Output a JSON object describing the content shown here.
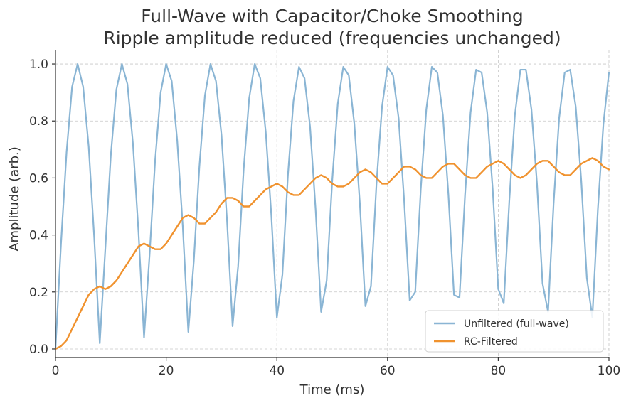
{
  "chart_data": {
    "type": "line",
    "title": "Full-Wave with Capacitor/Choke Smoothing",
    "subtitle": "Ripple amplitude reduced (frequencies unchanged)",
    "xlabel": "Time (ms)",
    "ylabel": "Amplitude (arb.)",
    "xlim": [
      0,
      100
    ],
    "ylim": [
      -0.03,
      1.05
    ],
    "xticks": [
      0,
      20,
      40,
      60,
      80,
      100
    ],
    "yticks": [
      0.0,
      0.2,
      0.4,
      0.6,
      0.8,
      1.0
    ],
    "xtick_labels": [
      "0",
      "20",
      "40",
      "60",
      "80",
      "100"
    ],
    "ytick_labels": [
      "0.0",
      "0.2",
      "0.4",
      "0.6",
      "0.8",
      "1.0"
    ],
    "grid": true,
    "legend_position": "bottom-right",
    "series": [
      {
        "name": "Unfiltered (full-wave)",
        "color": "#8ab5d4",
        "x": [
          0,
          1,
          2,
          3,
          4,
          5,
          6,
          7,
          8,
          9,
          10,
          11,
          12,
          13,
          14,
          15,
          16,
          17,
          18,
          19,
          20,
          21,
          22,
          23,
          24,
          25,
          26,
          27,
          28,
          29,
          30,
          31,
          32,
          33,
          34,
          35,
          36,
          37,
          38,
          39,
          40,
          41,
          42,
          43,
          44,
          45,
          46,
          47,
          48,
          49,
          50,
          51,
          52,
          53,
          54,
          55,
          56,
          57,
          58,
          59,
          60,
          61,
          62,
          63,
          64,
          65,
          66,
          67,
          68,
          69,
          70,
          71,
          72,
          73,
          74,
          75,
          76,
          77,
          78,
          79,
          80,
          81,
          82,
          83,
          84,
          85,
          86,
          87,
          88,
          89,
          90,
          91,
          92,
          93,
          94,
          95,
          96,
          97,
          98,
          99,
          100
        ],
        "y": [
          0.0,
          0.37,
          0.69,
          0.92,
          1.0,
          0.92,
          0.71,
          0.39,
          0.02,
          0.35,
          0.68,
          0.91,
          1.0,
          0.93,
          0.72,
          0.41,
          0.04,
          0.33,
          0.66,
          0.9,
          1.0,
          0.94,
          0.73,
          0.43,
          0.06,
          0.31,
          0.64,
          0.89,
          1.0,
          0.94,
          0.75,
          0.45,
          0.08,
          0.29,
          0.63,
          0.88,
          1.0,
          0.95,
          0.76,
          0.47,
          0.11,
          0.26,
          0.61,
          0.87,
          0.99,
          0.95,
          0.78,
          0.49,
          0.13,
          0.24,
          0.59,
          0.86,
          0.99,
          0.96,
          0.79,
          0.51,
          0.15,
          0.22,
          0.58,
          0.85,
          0.99,
          0.96,
          0.81,
          0.52,
          0.17,
          0.2,
          0.56,
          0.84,
          0.99,
          0.97,
          0.82,
          0.54,
          0.19,
          0.18,
          0.54,
          0.83,
          0.98,
          0.97,
          0.83,
          0.56,
          0.21,
          0.16,
          0.52,
          0.82,
          0.98,
          0.98,
          0.84,
          0.58,
          0.23,
          0.13,
          0.51,
          0.81,
          0.97,
          0.98,
          0.85,
          0.59,
          0.25,
          0.11,
          0.49,
          0.79,
          0.97
        ]
      },
      {
        "name": "RC-Filtered",
        "color": "#f0922e",
        "x": [
          0,
          1,
          2,
          3,
          4,
          5,
          6,
          7,
          8,
          9,
          10,
          11,
          12,
          13,
          14,
          15,
          16,
          17,
          18,
          19,
          20,
          21,
          22,
          23,
          24,
          25,
          26,
          27,
          28,
          29,
          30,
          31,
          32,
          33,
          34,
          35,
          36,
          37,
          38,
          39,
          40,
          41,
          42,
          43,
          44,
          45,
          46,
          47,
          48,
          49,
          50,
          51,
          52,
          53,
          54,
          55,
          56,
          57,
          58,
          59,
          60,
          61,
          62,
          63,
          64,
          65,
          66,
          67,
          68,
          69,
          70,
          71,
          72,
          73,
          74,
          75,
          76,
          77,
          78,
          79,
          80,
          81,
          82,
          83,
          84,
          85,
          86,
          87,
          88,
          89,
          90,
          91,
          92,
          93,
          94,
          95,
          96,
          97,
          98,
          99,
          100
        ],
        "y": [
          0.0,
          0.01,
          0.03,
          0.07,
          0.11,
          0.15,
          0.19,
          0.21,
          0.22,
          0.21,
          0.22,
          0.24,
          0.27,
          0.3,
          0.33,
          0.36,
          0.37,
          0.36,
          0.35,
          0.35,
          0.37,
          0.4,
          0.43,
          0.46,
          0.47,
          0.46,
          0.44,
          0.44,
          0.46,
          0.48,
          0.51,
          0.53,
          0.53,
          0.52,
          0.5,
          0.5,
          0.52,
          0.54,
          0.56,
          0.57,
          0.58,
          0.57,
          0.55,
          0.54,
          0.54,
          0.56,
          0.58,
          0.6,
          0.61,
          0.6,
          0.58,
          0.57,
          0.57,
          0.58,
          0.6,
          0.62,
          0.63,
          0.62,
          0.6,
          0.58,
          0.58,
          0.6,
          0.62,
          0.64,
          0.64,
          0.63,
          0.61,
          0.6,
          0.6,
          0.62,
          0.64,
          0.65,
          0.65,
          0.63,
          0.61,
          0.6,
          0.6,
          0.62,
          0.64,
          0.65,
          0.66,
          0.65,
          0.63,
          0.61,
          0.6,
          0.61,
          0.63,
          0.65,
          0.66,
          0.66,
          0.64,
          0.62,
          0.61,
          0.61,
          0.63,
          0.65,
          0.66,
          0.67,
          0.66,
          0.64,
          0.63
        ]
      }
    ]
  }
}
